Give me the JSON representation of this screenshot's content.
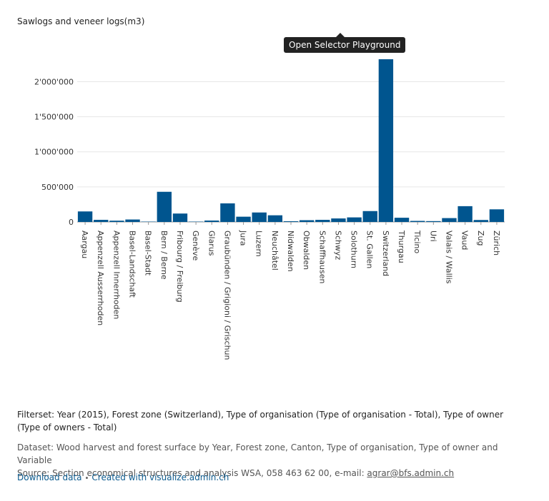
{
  "chart_data": {
    "type": "bar",
    "title": "Sawlogs and veneer logs(m3)",
    "xlabel": "",
    "ylabel": "",
    "ylim": [
      0,
      2320000
    ],
    "yticks": [
      0,
      500000,
      1000000,
      1500000,
      2000000
    ],
    "ytick_labels": [
      "0",
      "500'000",
      "1'000'000",
      "1'500'000",
      "2'000'000"
    ],
    "grid": true,
    "bar_color": "#00558f",
    "categories": [
      "Aargau",
      "Appenzell Ausserrhoden",
      "Appenzell Innerrhoden",
      "Basel-Landschaft",
      "Basel-Stadt",
      "Bern / Berne",
      "Fribourg / Freiburg",
      "Genève",
      "Glarus",
      "Graubünden / Grigioni / Grischun",
      "Jura",
      "Luzern",
      "Neuchâtel",
      "Nidwalden",
      "Obwalden",
      "Schaffhausen",
      "Schwyz",
      "Solothurn",
      "St. Gallen",
      "Switzerland",
      "Thurgau",
      "Ticino",
      "Uri",
      "Valais / Wallis",
      "Vaud",
      "Zug",
      "Zürich"
    ],
    "values": [
      150000,
      30000,
      18000,
      35000,
      1000,
      430000,
      120000,
      5000,
      20000,
      265000,
      75000,
      135000,
      95000,
      10000,
      25000,
      30000,
      50000,
      65000,
      155000,
      2320000,
      60000,
      15000,
      12000,
      55000,
      225000,
      28000,
      180000
    ]
  },
  "tooltip": {
    "label": "Open Selector Playground"
  },
  "footer": {
    "filterset": "Filterset: Year (2015), Forest zone (Switzerland), Type of organisation (Type of organisation - Total), Type of owner (Type of owners - Total)",
    "dataset": "Dataset: Wood harvest and forest surface by Year, Forest zone, Canton, Type of organisation, Type of owner and Variable",
    "source_prefix": "Source: Section economical structures and analysis WSA, 058 463 62 00, e-mail: ",
    "source_email": "agrar@bfs.admin.ch",
    "download_label": "Download data",
    "separator": "•",
    "created_with_label": "Created with visualize.admin.ch"
  }
}
